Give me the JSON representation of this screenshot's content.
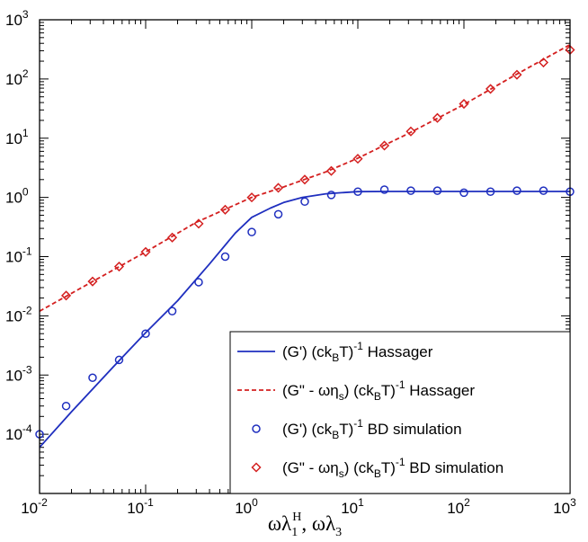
{
  "chart_data": {
    "type": "line",
    "x_scale": "log",
    "y_scale": "log",
    "xlim": [
      0.01,
      1000
    ],
    "ylim": [
      1e-05,
      1000
    ],
    "grid": false,
    "legend_position": "bottom-right",
    "xlabel": {
      "main": "ωλ",
      "sub1": "1",
      "sup1": "H",
      "sep": ", ωλ",
      "sub2": "3"
    },
    "ylabel": "",
    "x_ticks": [
      {
        "base": "10",
        "exp": "-2"
      },
      {
        "base": "10",
        "exp": "-1"
      },
      {
        "base": "10",
        "exp": "0"
      },
      {
        "base": "10",
        "exp": "1"
      },
      {
        "base": "10",
        "exp": "2"
      },
      {
        "base": "10",
        "exp": "3"
      }
    ],
    "y_ticks": [
      {
        "base": "10",
        "exp": "-4"
      },
      {
        "base": "10",
        "exp": "-3"
      },
      {
        "base": "10",
        "exp": "-2"
      },
      {
        "base": "10",
        "exp": "-1"
      },
      {
        "base": "10",
        "exp": "0"
      },
      {
        "base": "10",
        "exp": "1"
      },
      {
        "base": "10",
        "exp": "2"
      },
      {
        "base": "10",
        "exp": "3"
      }
    ],
    "series": [
      {
        "name": "(G') (ck_B T)^-1 Hassager",
        "legend": {
          "pre": "(G') (ck",
          "sub": "B",
          "mid": "T)",
          "sup": "-1",
          "post": " Hassager"
        },
        "kind": "line",
        "dash": false,
        "color": "#1f2fbf",
        "x": [
          0.01,
          0.02,
          0.05,
          0.1,
          0.2,
          0.4,
          0.7,
          1.0,
          1.5,
          2,
          3,
          5,
          7,
          10,
          20,
          100,
          1000
        ],
        "y": [
          6e-05,
          0.00024,
          0.0014,
          0.0052,
          0.018,
          0.075,
          0.25,
          0.46,
          0.66,
          0.82,
          1.0,
          1.15,
          1.2,
          1.25,
          1.26,
          1.26,
          1.26
        ]
      },
      {
        "name": "(G\" - ωη_s) (ck_B T)^-1 Hassager",
        "legend": {
          "pre": "(G\" - ωη",
          "sub0": "s",
          "mid0": ") (ck",
          "sub": "B",
          "mid": "T)",
          "sup": "-1",
          "post": " Hassager"
        },
        "kind": "line",
        "dash": true,
        "color": "#d42020",
        "x": [
          0.01,
          0.03,
          0.1,
          0.3,
          1,
          2,
          3,
          5,
          10,
          30,
          100,
          300,
          1000
        ],
        "y": [
          0.012,
          0.036,
          0.12,
          0.38,
          1.0,
          1.5,
          1.95,
          2.7,
          4.6,
          12,
          37,
          115,
          380
        ]
      },
      {
        "name": "(G') (ck_B T)^-1 BD simulation",
        "legend": {
          "pre": "(G') (ck",
          "sub": "B",
          "mid": "T)",
          "sup": "-1",
          "post": " BD simulation"
        },
        "kind": "scatter",
        "marker": "circle",
        "color": "#1f2fbf",
        "x": [
          0.01,
          0.0178,
          0.0316,
          0.0562,
          0.1,
          0.178,
          0.316,
          0.562,
          1.0,
          1.78,
          3.16,
          5.62,
          10,
          17.8,
          31.6,
          56.2,
          100,
          178,
          316,
          562,
          1000
        ],
        "y": [
          0.0001,
          0.0003,
          0.0009,
          0.0018,
          0.005,
          0.012,
          0.037,
          0.1,
          0.26,
          0.52,
          0.85,
          1.1,
          1.25,
          1.35,
          1.3,
          1.3,
          1.2,
          1.25,
          1.3,
          1.3,
          1.25
        ]
      },
      {
        "name": "(G\" - ωη_s) (ck_B T)^-1 BD simulation",
        "legend": {
          "pre": "(G\" - ωη",
          "sub0": "s",
          "mid0": ") (ck",
          "sub": "B",
          "mid": "T)",
          "sup": "-1",
          "post": " BD simulation"
        },
        "kind": "scatter",
        "marker": "diamond",
        "color": "#d42020",
        "x": [
          0.0178,
          0.0316,
          0.0562,
          0.1,
          0.178,
          0.316,
          0.562,
          1.0,
          1.78,
          3.16,
          5.62,
          10,
          17.8,
          31.6,
          56.2,
          100,
          178,
          316,
          562,
          1000
        ],
        "y": [
          0.022,
          0.038,
          0.068,
          0.12,
          0.21,
          0.36,
          0.62,
          1.0,
          1.45,
          2.0,
          2.8,
          4.5,
          7.5,
          13,
          22,
          38,
          68,
          118,
          190,
          310
        ]
      }
    ]
  }
}
